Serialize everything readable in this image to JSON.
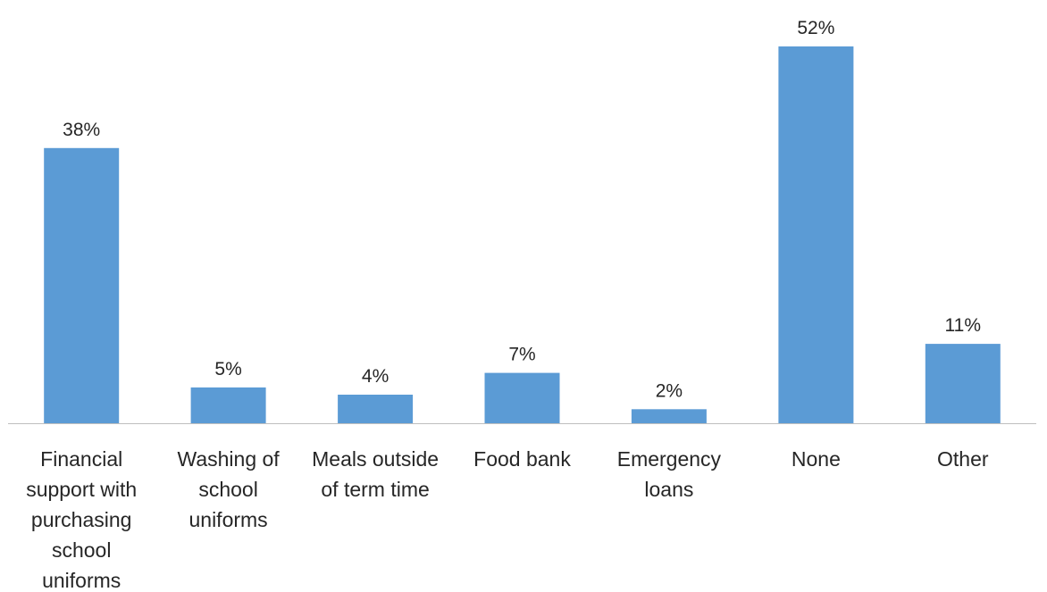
{
  "chart_data": {
    "type": "bar",
    "categories": [
      "Financial support with purchasing school uniforms",
      "Washing of school uniforms",
      "Meals outside of term time",
      "Food bank",
      "Emergency loans",
      "None",
      "Other"
    ],
    "category_lines": [
      [
        "Financial",
        "support with",
        "purchasing",
        "school",
        "uniforms"
      ],
      [
        "Washing of",
        "school",
        "uniforms"
      ],
      [
        "Meals outside",
        "of term time"
      ],
      [
        "Food bank"
      ],
      [
        "Emergency",
        "loans"
      ],
      [
        "None"
      ],
      [
        "Other"
      ]
    ],
    "values": [
      38,
      5,
      4,
      7,
      2,
      52,
      11
    ],
    "value_labels": [
      "38%",
      "5%",
      "4%",
      "7%",
      "2%",
      "52%",
      "11%"
    ],
    "title": "",
    "xlabel": "",
    "ylabel": "",
    "ylim": [
      0,
      52
    ],
    "grid": false,
    "legend": "none",
    "bar_color": "#5b9bd5",
    "axis_color": "#bfbfbf",
    "text_color": "#262626"
  }
}
